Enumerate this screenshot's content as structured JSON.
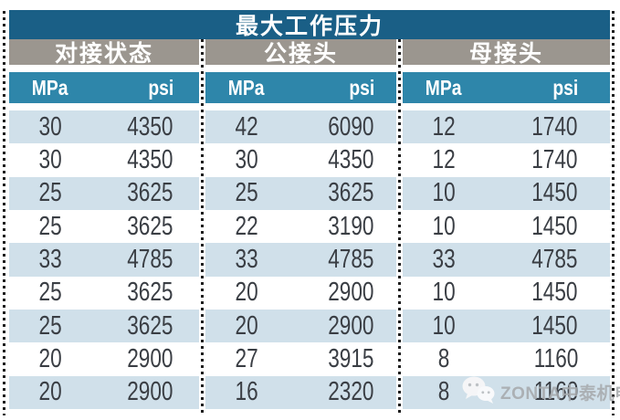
{
  "chart_data": {
    "type": "table",
    "title": "最大工作压力",
    "column_groups": [
      {
        "label": "对接状态",
        "columns": [
          "MPa",
          "psi"
        ]
      },
      {
        "label": "公接头",
        "columns": [
          "MPa",
          "psi"
        ]
      },
      {
        "label": "母接头",
        "columns": [
          "MPa",
          "psi"
        ]
      }
    ],
    "rows": [
      [
        30,
        4350,
        42,
        6090,
        12,
        1740
      ],
      [
        30,
        4350,
        30,
        4350,
        12,
        1740
      ],
      [
        25,
        3625,
        25,
        3625,
        10,
        1450
      ],
      [
        25,
        3625,
        22,
        3190,
        10,
        1450
      ],
      [
        33,
        4785,
        33,
        4785,
        33,
        4785
      ],
      [
        25,
        3625,
        20,
        2900,
        10,
        1450
      ],
      [
        25,
        3625,
        20,
        2900,
        10,
        1450
      ],
      [
        20,
        2900,
        27,
        3915,
        8,
        1160
      ],
      [
        20,
        2900,
        16,
        2320,
        8,
        1160
      ]
    ]
  },
  "watermark": {
    "label": "ZONTA中泰机电",
    "icon": "wechat-icon"
  },
  "colors": {
    "title_bg": "#1A5F86",
    "group_header_bg": "#9B968F",
    "unit_header_bg": "#2E86AA",
    "row_alt_bg": "#D0E0EA",
    "row_bg": "#FFFFFF",
    "value_text": "#3A3E44",
    "header_text": "#FFFFFF",
    "separator_dots": "#1D1D1D",
    "watermark_text": "#A7AAAD"
  }
}
